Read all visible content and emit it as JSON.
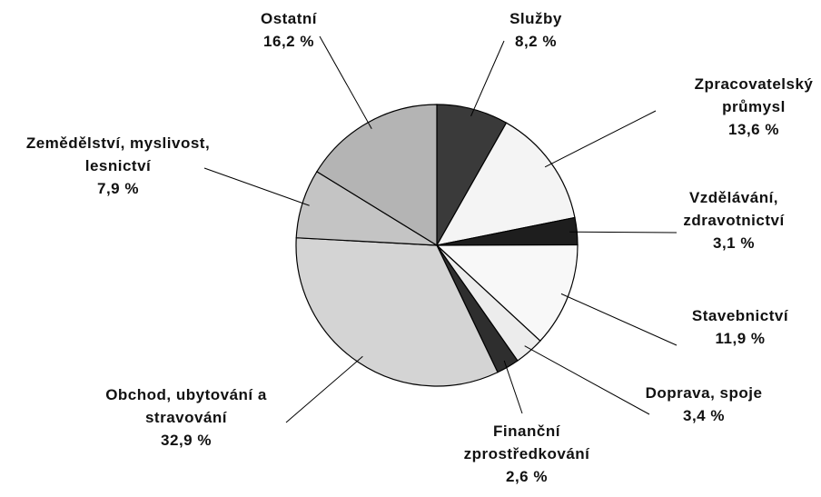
{
  "chart_data": {
    "type": "pie",
    "categories": [
      "Služby",
      "Zpracovatelský průmysl",
      "Vzdělávání, zdravotnictví",
      "Stavebnictví",
      "Doprava, spoje",
      "Finanční zprostředkování",
      "Obchod, ubytování a stravování",
      "Zemědělství, myslivost, lesnictví",
      "Ostatní"
    ],
    "values": [
      8.2,
      13.6,
      3.1,
      11.9,
      3.4,
      2.6,
      32.9,
      7.9,
      16.2
    ],
    "value_labels": [
      "8,2 %",
      "13,6 %",
      "3,1 %",
      "11,9 %",
      "3,4 %",
      "2,6 %",
      "32,9 %",
      "7,9 %",
      "16,2 %"
    ],
    "colors": [
      "#3a3a3a",
      "#f4f4f4",
      "#1e1e1e",
      "#f8f8f8",
      "#ececec",
      "#2e2e2e",
      "#d4d4d4",
      "#c4c4c4",
      "#b4b4b4"
    ]
  }
}
